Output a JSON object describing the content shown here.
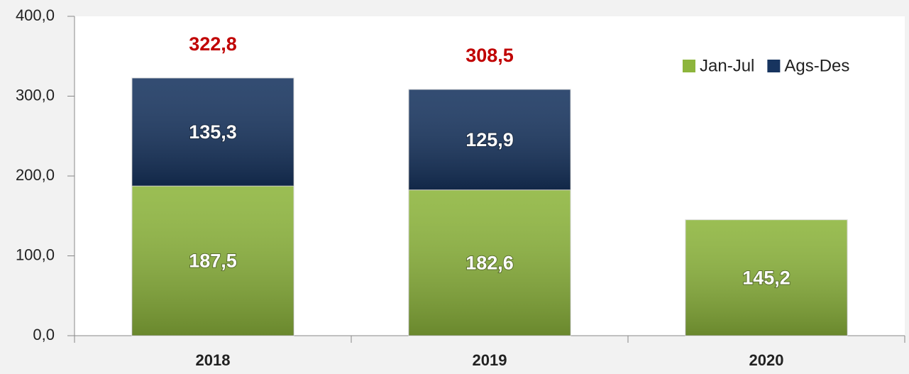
{
  "chart_data": {
    "type": "stacked_bar",
    "categories": [
      "2018",
      "2019",
      "2020"
    ],
    "series": [
      {
        "name": "Jan-Jul",
        "color": "#8db53c",
        "values": [
          187.5,
          182.6,
          145.2
        ],
        "value_labels": [
          "187,5",
          "182,6",
          "145,2"
        ]
      },
      {
        "name": "Ags-Des",
        "color": "#17345f",
        "values": [
          135.3,
          125.9,
          null
        ],
        "value_labels": [
          "135,3",
          "125,9",
          null
        ]
      }
    ],
    "totals": [
      322.8,
      308.5,
      null
    ],
    "total_labels": [
      "322,8",
      "308,5",
      null
    ],
    "ylim": [
      0,
      400
    ],
    "yticks": [
      {
        "value": 0,
        "label": "0,0"
      },
      {
        "value": 100,
        "label": "100,0"
      },
      {
        "value": 200,
        "label": "200,0"
      },
      {
        "value": 300,
        "label": "300,0"
      },
      {
        "value": 400,
        "label": "400,0"
      }
    ],
    "grid": false,
    "legend": "top-right"
  }
}
